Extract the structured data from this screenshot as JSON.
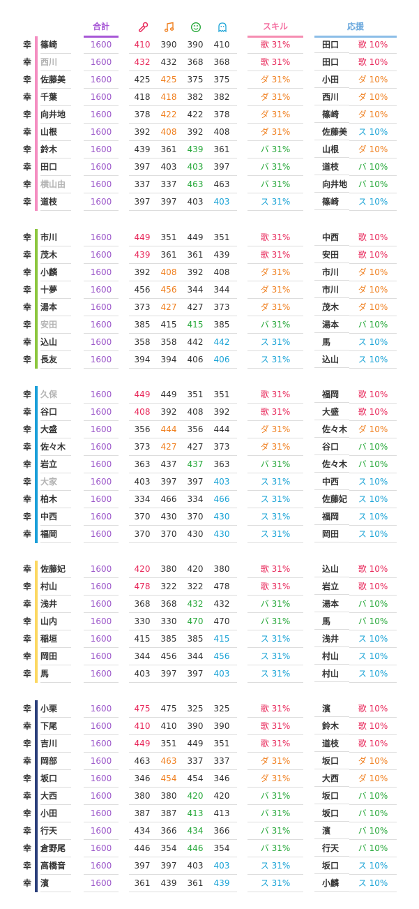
{
  "header": {
    "total": "合計",
    "skill": "スキル",
    "support": "応援",
    "icons": [
      "mic-icon",
      "music-note-icon",
      "smiley-icon",
      "ghost-icon"
    ]
  },
  "colors": {
    "song": "#e8295b",
    "dance": "#f08020",
    "variety": "#27a83a",
    "sky": "#1aa3d6",
    "total": "#9b56c9"
  },
  "groups": [
    {
      "bar_color": "#f48ec1",
      "rows": [
        {
          "mark": "幸",
          "name": "篠崎",
          "grey": false,
          "total": "1600",
          "stats": [
            "410",
            "390",
            "390",
            "410"
          ],
          "hl": 0,
          "skill": "歌 31%",
          "skill_type": "song",
          "support_name": "田口",
          "support_skill": "歌 10%",
          "support_type": "song"
        },
        {
          "mark": "幸",
          "name": "西川",
          "grey": true,
          "total": "1600",
          "stats": [
            "432",
            "432",
            "368",
            "368"
          ],
          "hl": 0,
          "skill": "歌 31%",
          "skill_type": "song",
          "support_name": "田口",
          "support_skill": "歌 10%",
          "support_type": "song"
        },
        {
          "mark": "幸",
          "name": "佐藤美",
          "grey": false,
          "total": "1600",
          "stats": [
            "425",
            "425",
            "375",
            "375"
          ],
          "hl": 1,
          "skill": "ダ 31%",
          "skill_type": "dance",
          "support_name": "小田",
          "support_skill": "ダ 10%",
          "support_type": "dance"
        },
        {
          "mark": "幸",
          "name": "千葉",
          "grey": false,
          "total": "1600",
          "stats": [
            "418",
            "418",
            "382",
            "382"
          ],
          "hl": 1,
          "skill": "ダ 31%",
          "skill_type": "dance",
          "support_name": "西川",
          "support_skill": "ダ 10%",
          "support_type": "dance"
        },
        {
          "mark": "幸",
          "name": "向井地",
          "grey": false,
          "total": "1600",
          "stats": [
            "378",
            "422",
            "422",
            "378"
          ],
          "hl": 1,
          "skill": "ダ 31%",
          "skill_type": "dance",
          "support_name": "篠崎",
          "support_skill": "ダ 10%",
          "support_type": "dance"
        },
        {
          "mark": "幸",
          "name": "山根",
          "grey": false,
          "total": "1600",
          "stats": [
            "392",
            "408",
            "392",
            "408"
          ],
          "hl": 1,
          "skill": "ダ 31%",
          "skill_type": "dance",
          "support_name": "佐藤美",
          "support_skill": "ス 10%",
          "support_type": "sky"
        },
        {
          "mark": "幸",
          "name": "鈴木",
          "grey": false,
          "total": "1600",
          "stats": [
            "439",
            "361",
            "439",
            "361"
          ],
          "hl": 2,
          "skill": "バ 31%",
          "skill_type": "variety",
          "support_name": "山根",
          "support_skill": "ダ 10%",
          "support_type": "dance"
        },
        {
          "mark": "幸",
          "name": "田口",
          "grey": false,
          "total": "1600",
          "stats": [
            "397",
            "403",
            "403",
            "397"
          ],
          "hl": 2,
          "skill": "バ 31%",
          "skill_type": "variety",
          "support_name": "道枝",
          "support_skill": "バ 10%",
          "support_type": "variety"
        },
        {
          "mark": "幸",
          "name": "横山由",
          "grey": true,
          "total": "1600",
          "stats": [
            "337",
            "337",
            "463",
            "463"
          ],
          "hl": 2,
          "skill": "バ 31%",
          "skill_type": "variety",
          "support_name": "向井地",
          "support_skill": "バ 10%",
          "support_type": "variety"
        },
        {
          "mark": "幸",
          "name": "道枝",
          "grey": false,
          "total": "1600",
          "stats": [
            "397",
            "397",
            "403",
            "403"
          ],
          "hl": 3,
          "skill": "ス 31%",
          "skill_type": "sky",
          "support_name": "篠崎",
          "support_skill": "ス 10%",
          "support_type": "sky"
        }
      ]
    },
    {
      "bar_color": "#8cc63f",
      "rows": [
        {
          "mark": "幸",
          "name": "市川",
          "grey": false,
          "total": "1600",
          "stats": [
            "449",
            "351",
            "449",
            "351"
          ],
          "hl": 0,
          "skill": "歌 31%",
          "skill_type": "song",
          "support_name": "中西",
          "support_skill": "歌 10%",
          "support_type": "song"
        },
        {
          "mark": "幸",
          "name": "茂木",
          "grey": false,
          "total": "1600",
          "stats": [
            "439",
            "361",
            "361",
            "439"
          ],
          "hl": 0,
          "skill": "歌 31%",
          "skill_type": "song",
          "support_name": "安田",
          "support_skill": "歌 10%",
          "support_type": "song"
        },
        {
          "mark": "幸",
          "name": "小麟",
          "grey": false,
          "total": "1600",
          "stats": [
            "392",
            "408",
            "392",
            "408"
          ],
          "hl": 1,
          "skill": "ダ 31%",
          "skill_type": "dance",
          "support_name": "市川",
          "support_skill": "ダ 10%",
          "support_type": "dance"
        },
        {
          "mark": "幸",
          "name": "十夢",
          "grey": false,
          "total": "1600",
          "stats": [
            "456",
            "456",
            "344",
            "344"
          ],
          "hl": 1,
          "skill": "ダ 31%",
          "skill_type": "dance",
          "support_name": "市川",
          "support_skill": "ダ 10%",
          "support_type": "dance"
        },
        {
          "mark": "幸",
          "name": "湯本",
          "grey": false,
          "total": "1600",
          "stats": [
            "373",
            "427",
            "427",
            "373"
          ],
          "hl": 1,
          "skill": "ダ 31%",
          "skill_type": "dance",
          "support_name": "茂木",
          "support_skill": "ダ 10%",
          "support_type": "dance"
        },
        {
          "mark": "幸",
          "name": "安田",
          "grey": true,
          "total": "1600",
          "stats": [
            "385",
            "415",
            "415",
            "385"
          ],
          "hl": 2,
          "skill": "バ 31%",
          "skill_type": "variety",
          "support_name": "湯本",
          "support_skill": "バ 10%",
          "support_type": "variety"
        },
        {
          "mark": "幸",
          "name": "込山",
          "grey": false,
          "total": "1600",
          "stats": [
            "358",
            "358",
            "442",
            "442"
          ],
          "hl": 3,
          "skill": "ス 31%",
          "skill_type": "sky",
          "support_name": "馬",
          "support_skill": "ス 10%",
          "support_type": "sky"
        },
        {
          "mark": "幸",
          "name": "長友",
          "grey": false,
          "total": "1600",
          "stats": [
            "394",
            "394",
            "406",
            "406"
          ],
          "hl": 3,
          "skill": "ス 31%",
          "skill_type": "sky",
          "support_name": "込山",
          "support_skill": "ス 10%",
          "support_type": "sky"
        }
      ]
    },
    {
      "bar_color": "#1a9fd9",
      "rows": [
        {
          "mark": "幸",
          "name": "久保",
          "grey": true,
          "total": "1600",
          "stats": [
            "449",
            "449",
            "351",
            "351"
          ],
          "hl": 0,
          "skill": "歌 31%",
          "skill_type": "song",
          "support_name": "福岡",
          "support_skill": "歌 10%",
          "support_type": "song"
        },
        {
          "mark": "幸",
          "name": "谷口",
          "grey": false,
          "total": "1600",
          "stats": [
            "408",
            "392",
            "408",
            "392"
          ],
          "hl": 0,
          "skill": "歌 31%",
          "skill_type": "song",
          "support_name": "大盛",
          "support_skill": "歌 10%",
          "support_type": "song"
        },
        {
          "mark": "幸",
          "name": "大盛",
          "grey": false,
          "total": "1600",
          "stats": [
            "356",
            "444",
            "356",
            "444"
          ],
          "hl": 1,
          "skill": "ダ 31%",
          "skill_type": "dance",
          "support_name": "佐々木",
          "support_skill": "ダ 10%",
          "support_type": "dance"
        },
        {
          "mark": "幸",
          "name": "佐々木",
          "grey": false,
          "total": "1600",
          "stats": [
            "373",
            "427",
            "427",
            "373"
          ],
          "hl": 1,
          "skill": "ダ 31%",
          "skill_type": "dance",
          "support_name": "谷口",
          "support_skill": "バ 10%",
          "support_type": "variety"
        },
        {
          "mark": "幸",
          "name": "岩立",
          "grey": false,
          "total": "1600",
          "stats": [
            "363",
            "437",
            "437",
            "363"
          ],
          "hl": 2,
          "skill": "バ 31%",
          "skill_type": "variety",
          "support_name": "佐々木",
          "support_skill": "バ 10%",
          "support_type": "variety"
        },
        {
          "mark": "幸",
          "name": "大家",
          "grey": true,
          "total": "1600",
          "stats": [
            "403",
            "397",
            "397",
            "403"
          ],
          "hl": 3,
          "skill": "ス 31%",
          "skill_type": "sky",
          "support_name": "中西",
          "support_skill": "ス 10%",
          "support_type": "sky"
        },
        {
          "mark": "幸",
          "name": "柏木",
          "grey": false,
          "total": "1600",
          "stats": [
            "334",
            "466",
            "334",
            "466"
          ],
          "hl": 3,
          "skill": "ス 31%",
          "skill_type": "sky",
          "support_name": "佐藤妃",
          "support_skill": "ス 10%",
          "support_type": "sky"
        },
        {
          "mark": "幸",
          "name": "中西",
          "grey": false,
          "total": "1600",
          "stats": [
            "370",
            "430",
            "370",
            "430"
          ],
          "hl": 3,
          "skill": "ス 31%",
          "skill_type": "sky",
          "support_name": "福岡",
          "support_skill": "ス 10%",
          "support_type": "sky"
        },
        {
          "mark": "幸",
          "name": "福岡",
          "grey": false,
          "total": "1600",
          "stats": [
            "370",
            "370",
            "430",
            "430"
          ],
          "hl": 3,
          "skill": "ス 31%",
          "skill_type": "sky",
          "support_name": "岡田",
          "support_skill": "ス 10%",
          "support_type": "sky"
        }
      ]
    },
    {
      "bar_color": "#fcd862",
      "rows": [
        {
          "mark": "幸",
          "name": "佐藤妃",
          "grey": false,
          "total": "1600",
          "stats": [
            "420",
            "380",
            "420",
            "380"
          ],
          "hl": 0,
          "skill": "歌 31%",
          "skill_type": "song",
          "support_name": "込山",
          "support_skill": "歌 10%",
          "support_type": "song"
        },
        {
          "mark": "幸",
          "name": "村山",
          "grey": false,
          "total": "1600",
          "stats": [
            "478",
            "322",
            "322",
            "478"
          ],
          "hl": 0,
          "skill": "歌 31%",
          "skill_type": "song",
          "support_name": "岩立",
          "support_skill": "歌 10%",
          "support_type": "song"
        },
        {
          "mark": "幸",
          "name": "浅井",
          "grey": false,
          "total": "1600",
          "stats": [
            "368",
            "368",
            "432",
            "432"
          ],
          "hl": 2,
          "skill": "バ 31%",
          "skill_type": "variety",
          "support_name": "湯本",
          "support_skill": "バ 10%",
          "support_type": "variety"
        },
        {
          "mark": "幸",
          "name": "山内",
          "grey": false,
          "total": "1600",
          "stats": [
            "330",
            "330",
            "470",
            "470"
          ],
          "hl": 2,
          "skill": "バ 31%",
          "skill_type": "variety",
          "support_name": "馬",
          "support_skill": "バ 10%",
          "support_type": "variety"
        },
        {
          "mark": "幸",
          "name": "稲垣",
          "grey": false,
          "total": "1600",
          "stats": [
            "415",
            "385",
            "385",
            "415"
          ],
          "hl": 3,
          "skill": "ス 31%",
          "skill_type": "sky",
          "support_name": "浅井",
          "support_skill": "ス 10%",
          "support_type": "sky"
        },
        {
          "mark": "幸",
          "name": "岡田",
          "grey": false,
          "total": "1600",
          "stats": [
            "344",
            "456",
            "344",
            "456"
          ],
          "hl": 3,
          "skill": "ス 31%",
          "skill_type": "sky",
          "support_name": "村山",
          "support_skill": "ス 10%",
          "support_type": "sky"
        },
        {
          "mark": "幸",
          "name": "馬",
          "grey": false,
          "total": "1600",
          "stats": [
            "403",
            "397",
            "397",
            "403"
          ],
          "hl": 3,
          "skill": "ス 31%",
          "skill_type": "sky",
          "support_name": "村山",
          "support_skill": "ス 10%",
          "support_type": "sky"
        }
      ]
    },
    {
      "bar_color": "#2b3f7a",
      "rows": [
        {
          "mark": "幸",
          "name": "小栗",
          "grey": false,
          "total": "1600",
          "stats": [
            "475",
            "475",
            "325",
            "325"
          ],
          "hl": 0,
          "skill": "歌 31%",
          "skill_type": "song",
          "support_name": "濱",
          "support_skill": "歌 10%",
          "support_type": "song"
        },
        {
          "mark": "幸",
          "name": "下尾",
          "grey": false,
          "total": "1600",
          "stats": [
            "410",
            "410",
            "390",
            "390"
          ],
          "hl": 0,
          "skill": "歌 31%",
          "skill_type": "song",
          "support_name": "鈴木",
          "support_skill": "歌 10%",
          "support_type": "song"
        },
        {
          "mark": "幸",
          "name": "吉川",
          "grey": false,
          "total": "1600",
          "stats": [
            "449",
            "351",
            "449",
            "351"
          ],
          "hl": 0,
          "skill": "歌 31%",
          "skill_type": "song",
          "support_name": "道枝",
          "support_skill": "歌 10%",
          "support_type": "song"
        },
        {
          "mark": "幸",
          "name": "岡部",
          "grey": false,
          "total": "1600",
          "stats": [
            "463",
            "463",
            "337",
            "337"
          ],
          "hl": 1,
          "skill": "ダ 31%",
          "skill_type": "dance",
          "support_name": "坂口",
          "support_skill": "ダ 10%",
          "support_type": "dance"
        },
        {
          "mark": "幸",
          "name": "坂口",
          "grey": false,
          "total": "1600",
          "stats": [
            "346",
            "454",
            "454",
            "346"
          ],
          "hl": 1,
          "skill": "ダ 31%",
          "skill_type": "dance",
          "support_name": "大西",
          "support_skill": "ダ 10%",
          "support_type": "dance"
        },
        {
          "mark": "幸",
          "name": "大西",
          "grey": false,
          "total": "1600",
          "stats": [
            "380",
            "380",
            "420",
            "420"
          ],
          "hl": 2,
          "skill": "バ 31%",
          "skill_type": "variety",
          "support_name": "坂口",
          "support_skill": "バ 10%",
          "support_type": "variety"
        },
        {
          "mark": "幸",
          "name": "小田",
          "grey": false,
          "total": "1600",
          "stats": [
            "387",
            "387",
            "413",
            "413"
          ],
          "hl": 2,
          "skill": "バ 31%",
          "skill_type": "variety",
          "support_name": "坂口",
          "support_skill": "バ 10%",
          "support_type": "variety"
        },
        {
          "mark": "幸",
          "name": "行天",
          "grey": false,
          "total": "1600",
          "stats": [
            "434",
            "366",
            "434",
            "366"
          ],
          "hl": 2,
          "skill": "バ 31%",
          "skill_type": "variety",
          "support_name": "濱",
          "support_skill": "バ 10%",
          "support_type": "variety"
        },
        {
          "mark": "幸",
          "name": "倉野尾",
          "grey": false,
          "total": "1600",
          "stats": [
            "446",
            "354",
            "446",
            "354"
          ],
          "hl": 2,
          "skill": "バ 31%",
          "skill_type": "variety",
          "support_name": "行天",
          "support_skill": "バ 10%",
          "support_type": "variety"
        },
        {
          "mark": "幸",
          "name": "高橋音",
          "grey": false,
          "total": "1600",
          "stats": [
            "397",
            "397",
            "403",
            "403"
          ],
          "hl": 3,
          "skill": "ス 31%",
          "skill_type": "sky",
          "support_name": "坂口",
          "support_skill": "ス 10%",
          "support_type": "sky"
        },
        {
          "mark": "幸",
          "name": "濱",
          "grey": false,
          "total": "1600",
          "stats": [
            "361",
            "439",
            "361",
            "439"
          ],
          "hl": 3,
          "skill": "ス 31%",
          "skill_type": "sky",
          "support_name": "小麟",
          "support_skill": "ス 10%",
          "support_type": "sky"
        }
      ]
    }
  ]
}
